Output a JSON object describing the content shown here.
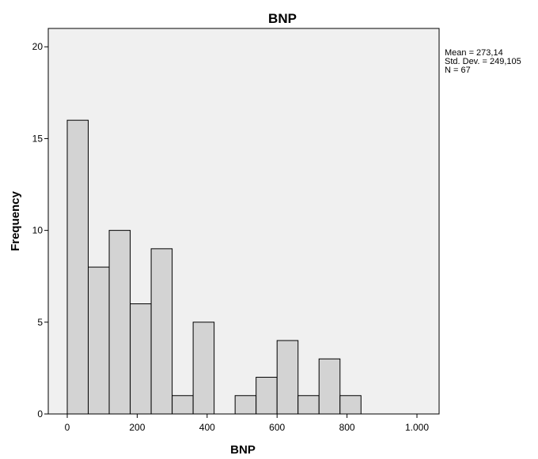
{
  "chart_data": {
    "type": "bar",
    "subtype": "histogram",
    "title": "BNP",
    "xlabel": "BNP",
    "ylabel": "Frequency",
    "bin_width": 60,
    "bins": [
      {
        "start": 0,
        "end": 60,
        "count": 16
      },
      {
        "start": 60,
        "end": 120,
        "count": 8
      },
      {
        "start": 120,
        "end": 180,
        "count": 10
      },
      {
        "start": 180,
        "end": 240,
        "count": 6
      },
      {
        "start": 240,
        "end": 300,
        "count": 9
      },
      {
        "start": 300,
        "end": 360,
        "count": 1
      },
      {
        "start": 360,
        "end": 420,
        "count": 5
      },
      {
        "start": 420,
        "end": 480,
        "count": 0
      },
      {
        "start": 480,
        "end": 540,
        "count": 1
      },
      {
        "start": 540,
        "end": 600,
        "count": 2
      },
      {
        "start": 600,
        "end": 660,
        "count": 4
      },
      {
        "start": 660,
        "end": 720,
        "count": 1
      },
      {
        "start": 720,
        "end": 780,
        "count": 3
      },
      {
        "start": 780,
        "end": 840,
        "count": 1
      }
    ],
    "xlim": [
      -120,
      1000
    ],
    "ylim": [
      0,
      21
    ],
    "x_ticks": [
      {
        "value": 0,
        "label": "0"
      },
      {
        "value": 200,
        "label": "200"
      },
      {
        "value": 400,
        "label": "400"
      },
      {
        "value": 600,
        "label": "600"
      },
      {
        "value": 800,
        "label": "800"
      },
      {
        "value": 1000,
        "label": "1.000"
      }
    ],
    "y_ticks": [
      {
        "value": 0,
        "label": "0"
      },
      {
        "value": 5,
        "label": "5"
      },
      {
        "value": 10,
        "label": "10"
      },
      {
        "value": 15,
        "label": "15"
      },
      {
        "value": 20,
        "label": "20"
      }
    ],
    "stats": [
      "Mean = 273,14",
      "Std. Dev. = 249,105",
      "N = 67"
    ],
    "grid": false,
    "colors": {
      "plot_background": "#f0f0f0",
      "bar_fill": "#d3d3d3",
      "bar_edge": "#000000"
    }
  }
}
